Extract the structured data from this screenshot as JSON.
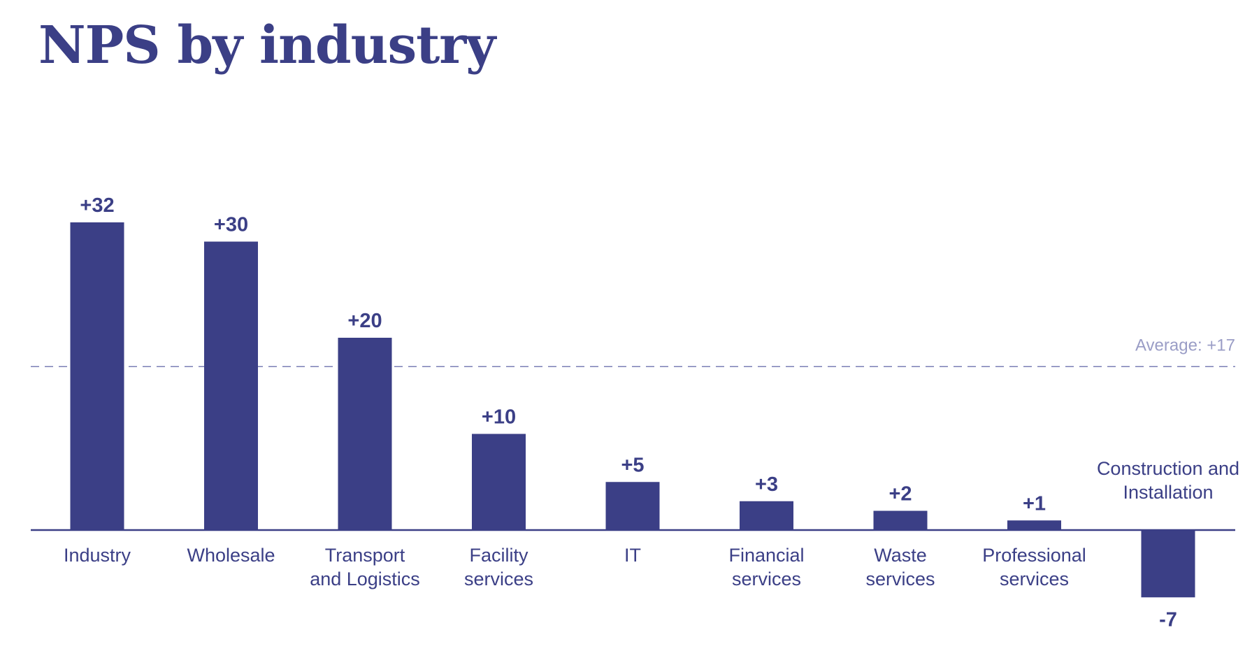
{
  "chart_data": {
    "type": "bar",
    "title": "NPS by industry",
    "categories": [
      [
        "Industry"
      ],
      [
        "Wholesale"
      ],
      [
        "Transport",
        "and Logistics"
      ],
      [
        "Facility",
        "services"
      ],
      [
        "IT"
      ],
      [
        "Financial",
        "services"
      ],
      [
        "Waste",
        "services"
      ],
      [
        "Professional",
        "services"
      ],
      [
        "Construction and",
        "Installation"
      ]
    ],
    "values": [
      32,
      30,
      20,
      10,
      5,
      3,
      2,
      1,
      -7
    ],
    "value_labels": [
      "+32",
      "+30",
      "+20",
      "+10",
      "+5",
      "+3",
      "+2",
      "+1",
      "-7"
    ],
    "average": {
      "value": 17,
      "label": "Average: +17"
    },
    "ylim": [
      -7,
      32
    ],
    "grid": false,
    "colors": {
      "bar": "#3b3f86",
      "axis": "#3b3f86",
      "text": "#3b3f86",
      "average_line": "#7b7fb5",
      "average_text": "#9a9dc6"
    }
  }
}
